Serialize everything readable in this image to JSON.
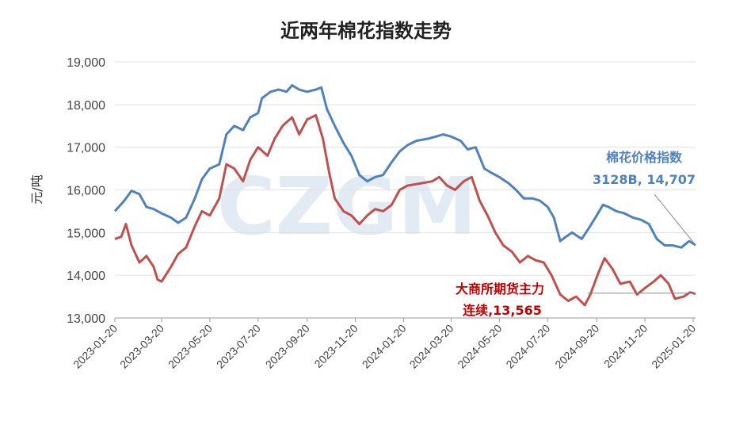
{
  "chart_data": {
    "type": "line",
    "title": "近两年棉花指数走势",
    "ylabel": "元/吨",
    "ylim": [
      13000,
      19000
    ],
    "yticks": [
      "13,000",
      "14,000",
      "15,000",
      "16,000",
      "17,000",
      "18,000",
      "19,000"
    ],
    "xticks": [
      "2023-01-20",
      "2023-03-20",
      "2023-05-20",
      "2023-07-20",
      "2023-09-20",
      "2023-11-20",
      "2024-01-20",
      "2024-03-20",
      "2024-05-20",
      "2024-07-20",
      "2024-09-20",
      "2024-11-20",
      "2025-01-20"
    ],
    "x_range": [
      "2023-01-20",
      "2025-01-23"
    ],
    "watermark": "CZGM",
    "series": [
      {
        "label_line1": "棉花价格指数",
        "label_line2": "3128B, 14,707",
        "color": "#4f81bd",
        "points": [
          [
            "2023-01-20",
            15500
          ],
          [
            "2023-02-01",
            15750
          ],
          [
            "2023-02-10",
            15980
          ],
          [
            "2023-02-20",
            15900
          ],
          [
            "2023-03-01",
            15600
          ],
          [
            "2023-03-10",
            15550
          ],
          [
            "2023-03-20",
            15450
          ],
          [
            "2023-04-01",
            15350
          ],
          [
            "2023-04-10",
            15230
          ],
          [
            "2023-04-20",
            15350
          ],
          [
            "2023-05-01",
            15800
          ],
          [
            "2023-05-10",
            16250
          ],
          [
            "2023-05-20",
            16500
          ],
          [
            "2023-06-01",
            16600
          ],
          [
            "2023-06-10",
            17300
          ],
          [
            "2023-06-20",
            17500
          ],
          [
            "2023-07-01",
            17400
          ],
          [
            "2023-07-10",
            17700
          ],
          [
            "2023-07-20",
            17800
          ],
          [
            "2023-07-25",
            18150
          ],
          [
            "2023-08-05",
            18300
          ],
          [
            "2023-08-15",
            18350
          ],
          [
            "2023-08-25",
            18300
          ],
          [
            "2023-09-01",
            18450
          ],
          [
            "2023-09-10",
            18350
          ],
          [
            "2023-09-20",
            18300
          ],
          [
            "2023-10-01",
            18350
          ],
          [
            "2023-10-08",
            18400
          ],
          [
            "2023-10-15",
            17900
          ],
          [
            "2023-10-25",
            17500
          ],
          [
            "2023-11-05",
            17100
          ],
          [
            "2023-11-15",
            16800
          ],
          [
            "2023-11-25",
            16350
          ],
          [
            "2023-12-05",
            16200
          ],
          [
            "2023-12-15",
            16300
          ],
          [
            "2023-12-25",
            16350
          ],
          [
            "2024-01-05",
            16650
          ],
          [
            "2024-01-15",
            16900
          ],
          [
            "2024-01-25",
            17050
          ],
          [
            "2024-02-05",
            17150
          ],
          [
            "2024-02-20",
            17200
          ],
          [
            "2024-03-01",
            17250
          ],
          [
            "2024-03-10",
            17300
          ],
          [
            "2024-03-20",
            17250
          ],
          [
            "2024-04-01",
            17150
          ],
          [
            "2024-04-10",
            16950
          ],
          [
            "2024-04-20",
            17000
          ],
          [
            "2024-05-01",
            16500
          ],
          [
            "2024-05-10",
            16400
          ],
          [
            "2024-05-20",
            16300
          ],
          [
            "2024-06-01",
            16150
          ],
          [
            "2024-06-10",
            16000
          ],
          [
            "2024-06-20",
            15800
          ],
          [
            "2024-07-01",
            15800
          ],
          [
            "2024-07-10",
            15750
          ],
          [
            "2024-07-20",
            15600
          ],
          [
            "2024-07-28",
            15350
          ],
          [
            "2024-08-05",
            14800
          ],
          [
            "2024-08-12",
            14900
          ],
          [
            "2024-08-20",
            15000
          ],
          [
            "2024-09-01",
            14850
          ],
          [
            "2024-09-10",
            15100
          ],
          [
            "2024-09-20",
            15400
          ],
          [
            "2024-09-28",
            15650
          ],
          [
            "2024-10-05",
            15600
          ],
          [
            "2024-10-15",
            15500
          ],
          [
            "2024-10-25",
            15450
          ],
          [
            "2024-11-05",
            15350
          ],
          [
            "2024-11-15",
            15300
          ],
          [
            "2024-11-25",
            15200
          ],
          [
            "2024-12-05",
            14850
          ],
          [
            "2024-12-15",
            14700
          ],
          [
            "2024-12-25",
            14700
          ],
          [
            "2025-01-05",
            14650
          ],
          [
            "2025-01-15",
            14800
          ],
          [
            "2025-01-23",
            14707
          ]
        ]
      },
      {
        "label_line1": "大商所期货主力",
        "label_line2": "连续,13,565",
        "color": "#c0504d",
        "points": [
          [
            "2023-01-20",
            14850
          ],
          [
            "2023-01-28",
            14900
          ],
          [
            "2023-02-03",
            15200
          ],
          [
            "2023-02-10",
            14700
          ],
          [
            "2023-02-20",
            14300
          ],
          [
            "2023-03-01",
            14450
          ],
          [
            "2023-03-10",
            14200
          ],
          [
            "2023-03-15",
            13900
          ],
          [
            "2023-03-20",
            13850
          ],
          [
            "2023-04-01",
            14200
          ],
          [
            "2023-04-10",
            14500
          ],
          [
            "2023-04-20",
            14650
          ],
          [
            "2023-05-01",
            15150
          ],
          [
            "2023-05-10",
            15500
          ],
          [
            "2023-05-20",
            15400
          ],
          [
            "2023-06-01",
            15800
          ],
          [
            "2023-06-10",
            16600
          ],
          [
            "2023-06-20",
            16500
          ],
          [
            "2023-07-01",
            16200
          ],
          [
            "2023-07-10",
            16700
          ],
          [
            "2023-07-20",
            17000
          ],
          [
            "2023-08-01",
            16800
          ],
          [
            "2023-08-10",
            17200
          ],
          [
            "2023-08-20",
            17500
          ],
          [
            "2023-09-01",
            17700
          ],
          [
            "2023-09-10",
            17300
          ],
          [
            "2023-09-20",
            17650
          ],
          [
            "2023-10-01",
            17750
          ],
          [
            "2023-10-10",
            17200
          ],
          [
            "2023-10-18",
            16400
          ],
          [
            "2023-10-25",
            15800
          ],
          [
            "2023-11-05",
            15500
          ],
          [
            "2023-11-15",
            15400
          ],
          [
            "2023-11-25",
            15200
          ],
          [
            "2023-12-05",
            15400
          ],
          [
            "2023-12-15",
            15550
          ],
          [
            "2023-12-25",
            15500
          ],
          [
            "2024-01-05",
            15650
          ],
          [
            "2024-01-15",
            16000
          ],
          [
            "2024-01-25",
            16100
          ],
          [
            "2024-02-10",
            16150
          ],
          [
            "2024-02-25",
            16200
          ],
          [
            "2024-03-05",
            16300
          ],
          [
            "2024-03-15",
            16100
          ],
          [
            "2024-03-25",
            16000
          ],
          [
            "2024-04-05",
            16200
          ],
          [
            "2024-04-15",
            16300
          ],
          [
            "2024-04-25",
            15750
          ],
          [
            "2024-05-05",
            15400
          ],
          [
            "2024-05-15",
            15000
          ],
          [
            "2024-05-25",
            14700
          ],
          [
            "2024-06-05",
            14550
          ],
          [
            "2024-06-15",
            14300
          ],
          [
            "2024-06-25",
            14450
          ],
          [
            "2024-07-05",
            14350
          ],
          [
            "2024-07-15",
            14300
          ],
          [
            "2024-07-25",
            14000
          ],
          [
            "2024-08-05",
            13550
          ],
          [
            "2024-08-15",
            13400
          ],
          [
            "2024-08-25",
            13500
          ],
          [
            "2024-09-05",
            13300
          ],
          [
            "2024-09-12",
            13550
          ],
          [
            "2024-09-22",
            14050
          ],
          [
            "2024-09-30",
            14400
          ],
          [
            "2024-10-10",
            14150
          ],
          [
            "2024-10-20",
            13800
          ],
          [
            "2024-11-01",
            13850
          ],
          [
            "2024-11-10",
            13550
          ],
          [
            "2024-11-20",
            13700
          ],
          [
            "2024-12-01",
            13850
          ],
          [
            "2024-12-10",
            14000
          ],
          [
            "2024-12-20",
            13800
          ],
          [
            "2024-12-28",
            13450
          ],
          [
            "2025-01-08",
            13500
          ],
          [
            "2025-01-16",
            13600
          ],
          [
            "2025-01-23",
            13565
          ]
        ]
      }
    ]
  }
}
